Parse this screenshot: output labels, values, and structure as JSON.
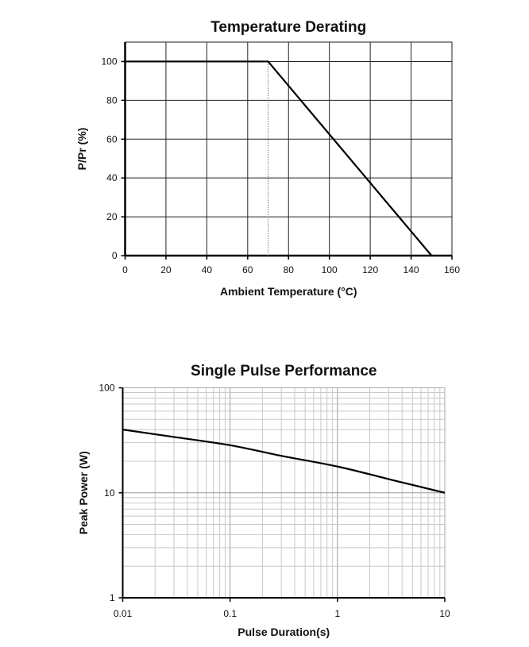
{
  "chart_data": [
    {
      "type": "line",
      "title": "Temperature Derating",
      "xlabel": "Ambient Temperature (°C)",
      "ylabel": "P/Pr (%)",
      "xlim": [
        0,
        160
      ],
      "ylim": [
        0,
        110
      ],
      "xticks": [
        "0",
        "20",
        "40",
        "60",
        "80",
        "100",
        "120",
        "140",
        "160"
      ],
      "yticks": [
        "0",
        "20",
        "40",
        "60",
        "80",
        "100"
      ],
      "grid": true,
      "x": [
        0,
        70,
        150
      ],
      "y": [
        100,
        100,
        0
      ],
      "reference_line": {
        "x": 70,
        "style": "dotted"
      },
      "line_color": "#000000"
    },
    {
      "type": "line",
      "title": "Single Pulse Performance",
      "xlabel": "Pulse Duration(s)",
      "ylabel": "Peak Power (W)",
      "xscale": "log",
      "yscale": "log",
      "xlim": [
        0.01,
        10
      ],
      "ylim": [
        1,
        100
      ],
      "xticks": [
        "0.01",
        "0.1",
        "1",
        "10"
      ],
      "yticks": [
        "1",
        "10",
        "100"
      ],
      "grid": true,
      "x": [
        0.01,
        0.03,
        0.1,
        0.3,
        1,
        3,
        10
      ],
      "y": [
        40,
        34,
        28.4,
        22.5,
        17.8,
        13.5,
        10
      ],
      "line_color": "#000000"
    }
  ]
}
